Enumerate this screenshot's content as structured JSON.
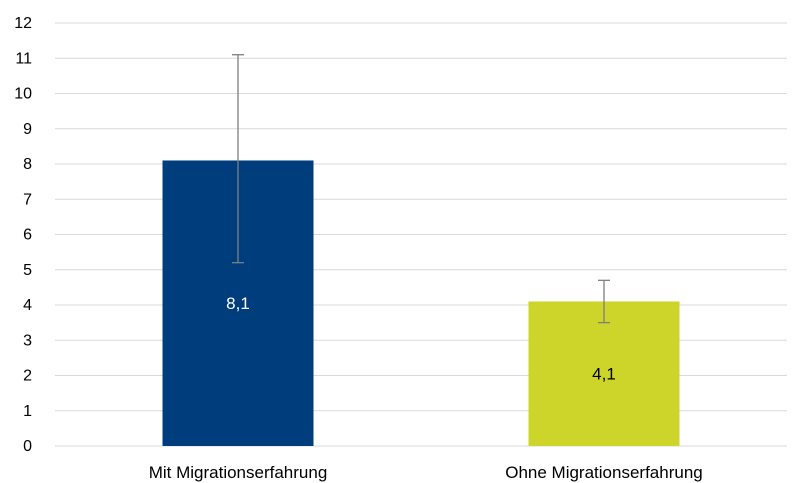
{
  "chart_data": {
    "type": "bar",
    "categories": [
      "Mit Migrationserfahrung",
      "Ohne Migrationserfahrung"
    ],
    "values": [
      8.1,
      4.1
    ],
    "value_labels": [
      "8,1",
      "4,1"
    ],
    "error_bars": [
      {
        "low": 5.2,
        "high": 11.1
      },
      {
        "low": 3.5,
        "high": 4.7
      }
    ],
    "bar_colors": [
      "#003d7c",
      "#cdd52b"
    ],
    "data_label_colors": [
      "#ffffff",
      "#000000"
    ],
    "ylim": [
      0,
      12
    ],
    "yticks": [
      "0",
      "1",
      "2",
      "3",
      "4",
      "5",
      "6",
      "7",
      "8",
      "9",
      "10",
      "11",
      "12"
    ],
    "grid": true,
    "gridline_color": "#d9d9d9",
    "error_bar_color": "#7f7f7f",
    "title": "",
    "xlabel": "",
    "ylabel": ""
  }
}
